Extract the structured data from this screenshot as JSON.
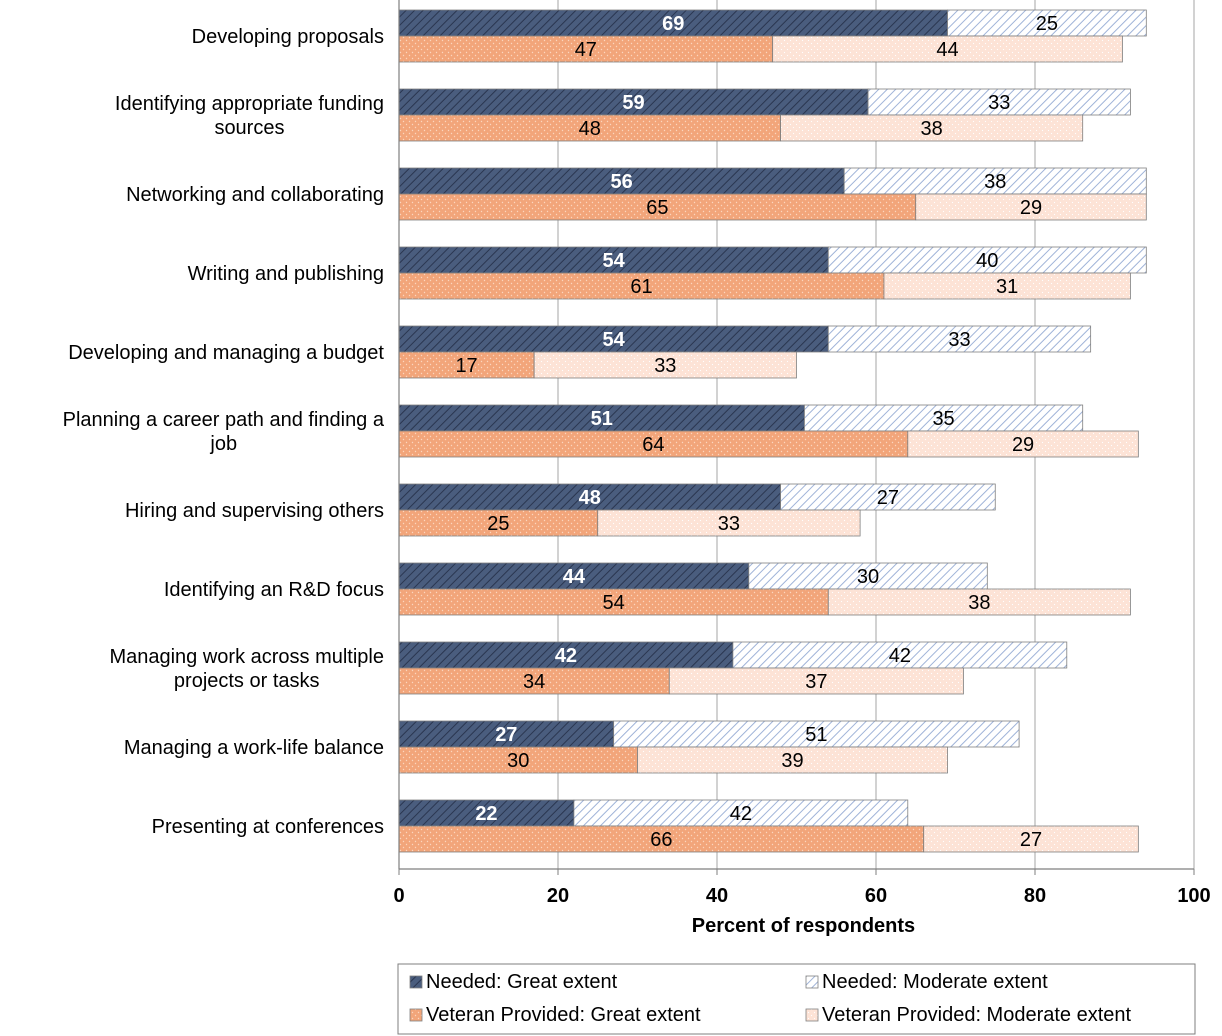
{
  "chart_data": {
    "type": "bar",
    "orientation": "horizontal",
    "stacked": true,
    "xlabel": "Percent of respondents",
    "xlim": [
      0,
      100
    ],
    "xticks": [
      0,
      20,
      40,
      60,
      80,
      100
    ],
    "grid": "vertical",
    "legend_position": "bottom",
    "categories": [
      "Developing proposals",
      "Identifying appropriate funding sources",
      "Networking and collaborating",
      "Writing and publishing",
      "Developing and managing a budget",
      "Planning a career path and finding a job",
      "Hiring and supervising others",
      "Identifying an R&D focus",
      "Managing work across multiple projects or tasks",
      "Managing a work-life balance",
      "Presenting at conferences"
    ],
    "category_lines": [
      [
        "Developing proposals"
      ],
      [
        "Identifying appropriate funding",
        "sources"
      ],
      [
        "Networking and collaborating"
      ],
      [
        "Writing and publishing"
      ],
      [
        "Developing and managing a budget"
      ],
      [
        "Planning a career path and finding a",
        "job"
      ],
      [
        "Hiring and supervising others"
      ],
      [
        "Identifying an R&D focus"
      ],
      [
        "Managing work across multiple",
        "projects or tasks"
      ],
      [
        "Managing a work-life balance"
      ],
      [
        "Presenting at conferences"
      ]
    ],
    "series": [
      {
        "name": "Needed: Great extent",
        "group": "needed",
        "color": "#4a5d7e",
        "values": [
          69,
          59,
          56,
          54,
          54,
          51,
          48,
          44,
          42,
          27,
          22
        ]
      },
      {
        "name": "Needed: Moderate extent",
        "group": "needed",
        "color": "#c5d3ea",
        "values": [
          25,
          33,
          38,
          40,
          33,
          35,
          27,
          30,
          42,
          51,
          42
        ]
      },
      {
        "name": "Veteran Provided: Great extent",
        "group": "veteran",
        "color": "#f2a57a",
        "values": [
          47,
          48,
          65,
          61,
          17,
          64,
          25,
          54,
          34,
          30,
          66
        ]
      },
      {
        "name": "Veteran Provided: Moderate extent",
        "group": "veteran",
        "color": "#fde3d6",
        "values": [
          44,
          38,
          29,
          31,
          33,
          29,
          33,
          38,
          37,
          39,
          27
        ]
      }
    ]
  }
}
